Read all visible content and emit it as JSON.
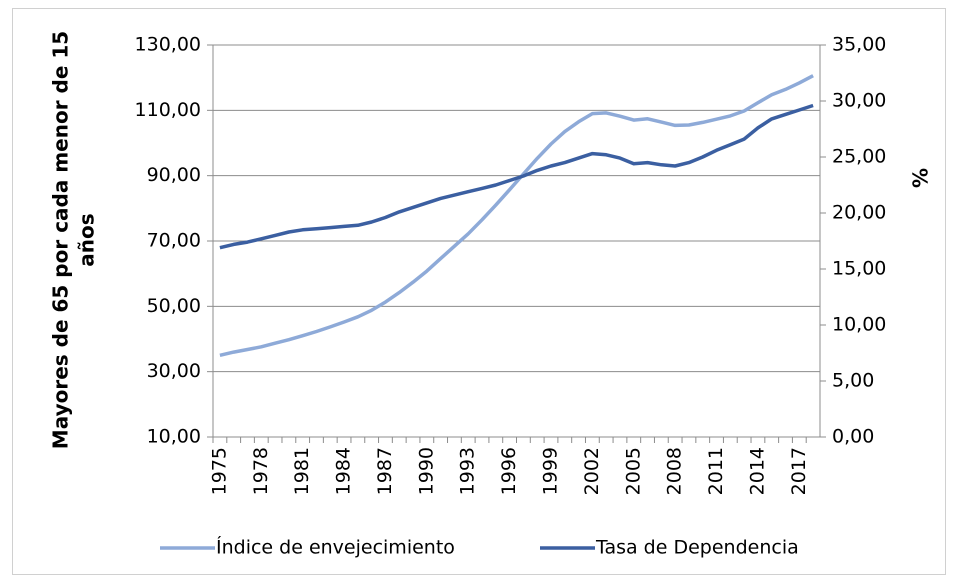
{
  "chart_data": {
    "type": "line",
    "categories": [
      "1975",
      null,
      null,
      "1978",
      null,
      null,
      "1981",
      null,
      null,
      "1984",
      null,
      null,
      "1987",
      null,
      null,
      "1990",
      null,
      null,
      "1993",
      null,
      null,
      "1996",
      null,
      null,
      "1999",
      null,
      null,
      "2002",
      null,
      null,
      "2005",
      null,
      null,
      "2008",
      null,
      null,
      "2011",
      null,
      null,
      "2014",
      null,
      null,
      "2017",
      null
    ],
    "series": [
      {
        "name": "Índice de envejecimiento",
        "color": "#8eaad8",
        "axis": "y",
        "values": [
          35,
          36,
          36.8,
          37.6,
          38.7,
          39.8,
          41,
          42.3,
          43.7,
          45.2,
          46.8,
          48.8,
          51.3,
          54.2,
          57.4,
          60.8,
          64.6,
          68.4,
          72.2,
          76.5,
          81,
          85.7,
          90.5,
          95.3,
          99.7,
          103.5,
          106.5,
          109,
          109.2,
          108.2,
          107,
          107.4,
          106.4,
          105.4,
          105.5,
          106.3,
          107.3,
          108.3,
          109.8,
          112.3,
          114.8,
          116.4,
          118.4,
          120.6
        ]
      },
      {
        "name": "Tasa de Dependencia",
        "color": "#3b5fa1",
        "axis": "y2",
        "values": [
          16.9,
          17.2,
          17.4,
          17.7,
          18.0,
          18.3,
          18.5,
          18.6,
          18.7,
          18.8,
          18.9,
          19.2,
          19.6,
          20.1,
          20.5,
          20.9,
          21.3,
          21.6,
          21.9,
          22.2,
          22.5,
          22.9,
          23.3,
          23.8,
          24.2,
          24.5,
          24.9,
          25.3,
          25.2,
          24.9,
          24.4,
          24.5,
          24.3,
          24.2,
          24.5,
          25.0,
          25.6,
          26.1,
          26.6,
          27.6,
          28.4,
          28.8,
          29.2,
          29.6
        ]
      }
    ],
    "ylabel": [
      "Mayores de 65 por cada menor de 15",
      "años"
    ],
    "y2label": "%",
    "ylim": [
      10,
      130
    ],
    "yticks": [
      {
        "value": 10,
        "label": "10,00"
      },
      {
        "value": 30,
        "label": "30,00"
      },
      {
        "value": 50,
        "label": "50,00"
      },
      {
        "value": 70,
        "label": "70,00"
      },
      {
        "value": 90,
        "label": "90,00"
      },
      {
        "value": 110,
        "label": "110,00"
      },
      {
        "value": 130,
        "label": "130,00"
      }
    ],
    "y2lim": [
      0,
      35
    ],
    "y2ticks": [
      {
        "value": 0,
        "label": "0,00"
      },
      {
        "value": 5,
        "label": "5,00"
      },
      {
        "value": 10,
        "label": "10,00"
      },
      {
        "value": 15,
        "label": "15,00"
      },
      {
        "value": 20,
        "label": "20,00"
      },
      {
        "value": 25,
        "label": "25,00"
      },
      {
        "value": 30,
        "label": "30,00"
      },
      {
        "value": 35,
        "label": "35,00"
      }
    ],
    "grid": true,
    "legend": "bottom"
  }
}
